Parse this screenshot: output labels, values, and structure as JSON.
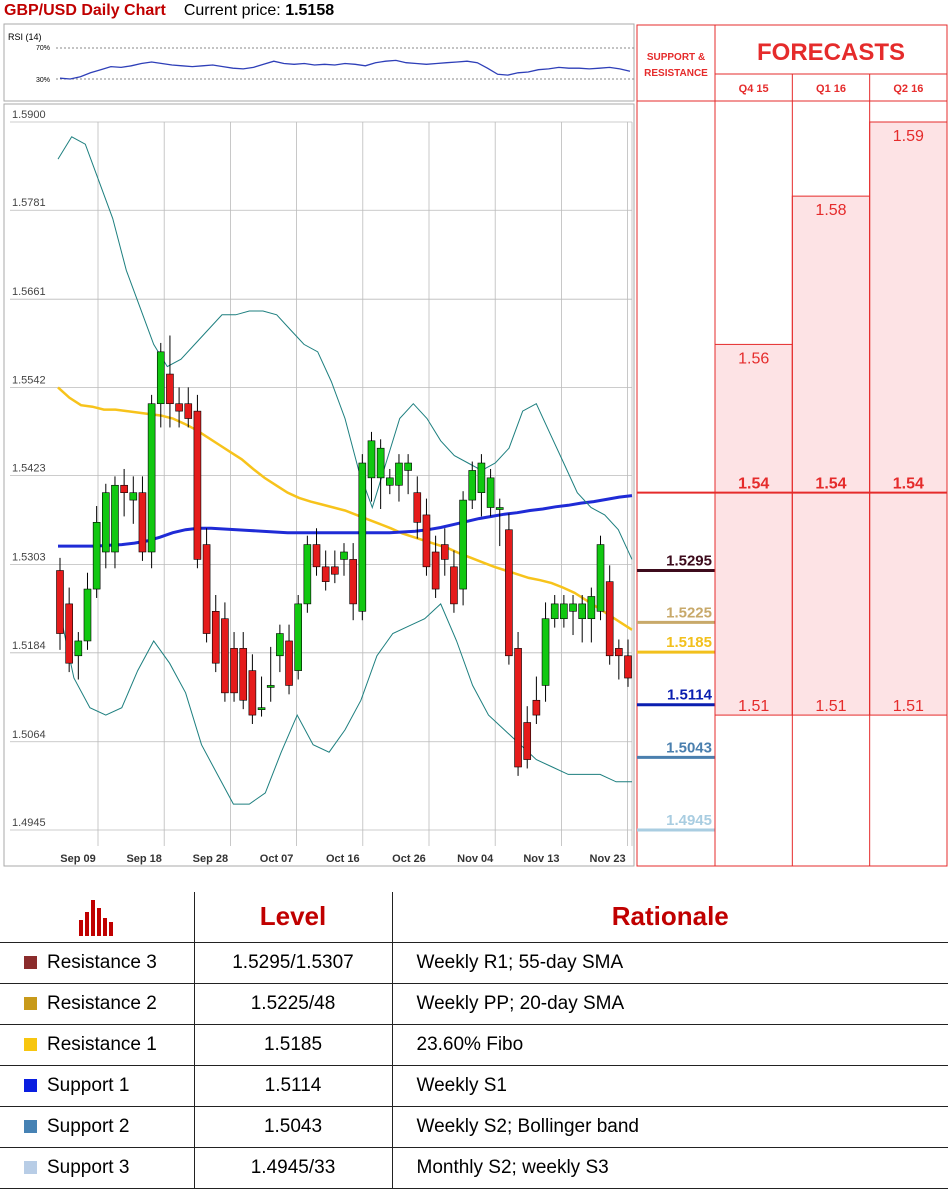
{
  "header": {
    "title": "GBP/USD Daily Chart",
    "price_label": "Current price:",
    "price": "1.5158"
  },
  "rsi": {
    "label": "RSI (14)",
    "upper": "70%",
    "lower": "30%",
    "color": "#2e3fb8",
    "values": [
      31,
      30,
      33,
      38,
      42,
      46,
      45,
      47,
      50,
      52,
      50,
      48,
      47,
      46,
      47,
      48,
      46,
      44,
      43,
      45,
      49,
      53,
      50,
      49,
      50,
      48,
      49,
      48,
      50,
      49,
      47,
      51,
      53,
      54,
      51,
      50,
      49,
      50,
      51,
      52,
      53,
      51,
      44,
      36,
      35,
      38,
      39,
      42,
      43,
      45,
      44,
      44,
      43,
      44,
      45,
      43,
      40
    ]
  },
  "chart_data": {
    "type": "candlestick",
    "ylim": [
      1.4945,
      1.59
    ],
    "y_ticks": [
      "1.5900",
      "1.5781",
      "1.5661",
      "1.5542",
      "1.5423",
      "1.5303",
      "1.5184",
      "1.5064",
      "1.4945"
    ],
    "x_ticks": [
      "Sep 09",
      "Sep 18",
      "Sep 28",
      "Oct 07",
      "Oct 16",
      "Oct 26",
      "Nov 04",
      "Nov 13",
      "Nov 23"
    ],
    "candles": [
      [
        1.5295,
        1.53,
        1.52,
        1.521
      ],
      [
        1.525,
        1.526,
        1.518,
        1.517
      ],
      [
        1.518,
        1.52,
        1.516,
        1.52
      ],
      [
        1.52,
        1.528,
        1.52,
        1.527
      ],
      [
        1.527,
        1.537,
        1.527,
        1.536
      ],
      [
        1.532,
        1.538,
        1.531,
        1.54
      ],
      [
        1.532,
        1.539,
        1.531,
        1.541
      ],
      [
        1.541,
        1.542,
        1.538,
        1.54
      ],
      [
        1.539,
        1.541,
        1.537,
        1.54
      ],
      [
        1.54,
        1.541,
        1.532,
        1.532
      ],
      [
        1.532,
        1.548,
        1.531,
        1.552
      ],
      [
        1.552,
        1.557,
        1.55,
        1.559
      ],
      [
        1.556,
        1.56,
        1.55,
        1.552
      ],
      [
        1.552,
        1.553,
        1.55,
        1.551
      ],
      [
        1.552,
        1.553,
        1.551,
        1.55
      ],
      [
        1.551,
        1.552,
        1.536,
        1.531
      ],
      [
        1.533,
        1.534,
        1.525,
        1.521
      ],
      [
        1.524,
        1.525,
        1.518,
        1.517
      ],
      [
        1.523,
        1.524,
        1.516,
        1.513
      ],
      [
        1.519,
        1.52,
        1.515,
        1.513
      ],
      [
        1.519,
        1.52,
        1.514,
        1.512
      ],
      [
        1.516,
        1.517,
        1.512,
        1.51
      ],
      [
        1.511,
        1.514,
        1.511,
        1.511
      ],
      [
        1.514,
        1.518,
        1.513,
        1.514
      ],
      [
        1.518,
        1.52,
        1.517,
        1.521
      ],
      [
        1.52,
        1.521,
        1.515,
        1.514
      ],
      [
        1.516,
        1.524,
        1.516,
        1.525
      ],
      [
        1.525,
        1.533,
        1.525,
        1.533
      ],
      [
        1.533,
        1.534,
        1.53,
        1.53
      ],
      [
        1.53,
        1.531,
        1.529,
        1.528
      ],
      [
        1.53,
        1.531,
        1.529,
        1.529
      ],
      [
        1.531,
        1.532,
        1.53,
        1.532
      ],
      [
        1.531,
        1.532,
        1.524,
        1.525
      ],
      [
        1.524,
        1.542,
        1.524,
        1.544
      ],
      [
        1.542,
        1.543,
        1.54,
        1.547
      ],
      [
        1.542,
        1.543,
        1.539,
        1.546
      ],
      [
        1.541,
        1.542,
        1.541,
        1.542
      ],
      [
        1.541,
        1.543,
        1.54,
        1.544
      ],
      [
        1.543,
        1.541,
        1.542,
        1.544
      ],
      [
        1.54,
        1.541,
        1.535,
        1.536
      ],
      [
        1.537,
        1.538,
        1.53,
        1.53
      ],
      [
        1.532,
        1.533,
        1.529,
        1.527
      ],
      [
        1.533,
        1.534,
        1.53,
        1.531
      ],
      [
        1.53,
        1.531,
        1.526,
        1.525
      ],
      [
        1.527,
        1.538,
        1.526,
        1.539
      ],
      [
        1.539,
        1.541,
        1.539,
        1.543
      ],
      [
        1.54,
        1.541,
        1.538,
        1.544
      ],
      [
        1.538,
        1.539,
        1.538,
        1.542
      ],
      [
        1.538,
        1.534,
        1.535,
        1.538
      ],
      [
        1.535,
        1.536,
        1.519,
        1.518
      ],
      [
        1.519,
        1.52,
        1.503,
        1.503
      ],
      [
        1.509,
        1.51,
        1.504,
        1.504
      ],
      [
        1.512,
        1.514,
        1.511,
        1.51
      ],
      [
        1.514,
        1.524,
        1.513,
        1.523
      ],
      [
        1.523,
        1.524,
        1.524,
        1.525
      ],
      [
        1.523,
        1.524,
        1.524,
        1.525
      ],
      [
        1.524,
        1.524,
        1.522,
        1.525
      ],
      [
        1.523,
        1.524,
        1.521,
        1.525
      ],
      [
        1.523,
        1.524,
        1.521,
        1.526
      ],
      [
        1.524,
        1.529,
        1.524,
        1.533
      ],
      [
        1.528,
        1.529,
        1.519,
        1.518
      ],
      [
        1.519,
        1.519,
        1.516,
        1.518
      ],
      [
        1.518,
        1.519,
        1.516,
        1.515
      ]
    ],
    "series": [
      {
        "name": "SMA (yellow)",
        "color": "#f7c31b",
        "values": [
          1.5542,
          1.5528,
          1.5518,
          1.5516,
          1.5512,
          1.5512,
          1.551,
          1.5508,
          1.5506,
          1.5504,
          1.55,
          1.5493,
          1.5485,
          1.5475,
          1.5465,
          1.5455,
          1.5445,
          1.5432,
          1.542,
          1.541,
          1.54,
          1.5393,
          1.5388,
          1.5384,
          1.538,
          1.5376,
          1.537,
          1.5364,
          1.5358,
          1.5352,
          1.5345,
          1.534,
          1.5335,
          1.533,
          1.5325,
          1.5318,
          1.5312,
          1.5306,
          1.53,
          1.5295,
          1.529,
          1.5285,
          1.5282,
          1.5278,
          1.5272,
          1.5265,
          1.5255,
          1.5245,
          1.5235,
          1.5225,
          1.5215
        ]
      },
      {
        "name": "SMA (blue)",
        "color": "#1f2bd6",
        "values": [
          1.5328,
          1.5328,
          1.5328,
          1.5328,
          1.5329,
          1.533,
          1.5332,
          1.5335,
          1.534,
          1.5346,
          1.535,
          1.5352,
          1.5352,
          1.5351,
          1.535,
          1.5349,
          1.5348,
          1.5347,
          1.5346,
          1.5346,
          1.5346,
          1.5346,
          1.5346,
          1.5346,
          1.5346,
          1.5346,
          1.5346,
          1.5347,
          1.5348,
          1.535,
          1.5353,
          1.5357,
          1.5361,
          1.5365,
          1.5368,
          1.5371,
          1.5373,
          1.5376,
          1.5378,
          1.5381,
          1.5383,
          1.5386,
          1.5388,
          1.5391,
          1.5394,
          1.5396
        ]
      },
      {
        "name": "Bollinger upper",
        "color": "#1d7f7f",
        "values": [
          1.585,
          1.588,
          1.587,
          1.582,
          1.577,
          1.57,
          1.565,
          1.56,
          1.557,
          1.558,
          1.56,
          1.562,
          1.564,
          1.564,
          1.5645,
          1.5645,
          1.564,
          1.562,
          1.56,
          1.559,
          1.555,
          1.55,
          1.543,
          1.538,
          1.544,
          1.55,
          1.552,
          1.55,
          1.547,
          1.545,
          1.544,
          1.543,
          1.544,
          1.546,
          1.551,
          1.552,
          1.548,
          1.544,
          1.54,
          1.538,
          1.537,
          1.535,
          1.531
        ]
      },
      {
        "name": "Bollinger lower",
        "color": "#1d7f7f",
        "values": [
          1.525,
          1.515,
          1.511,
          1.51,
          1.511,
          1.516,
          1.52,
          1.517,
          1.513,
          1.506,
          1.502,
          1.498,
          1.498,
          1.4995,
          1.505,
          1.51,
          1.506,
          1.505,
          1.508,
          1.512,
          1.518,
          1.521,
          1.522,
          1.523,
          1.525,
          1.52,
          1.514,
          1.51,
          1.508,
          1.506,
          1.504,
          1.503,
          1.502,
          1.502,
          1.502,
          1.501,
          1.501
        ]
      }
    ]
  },
  "support_resistance": {
    "header": "SUPPORT & RESISTANCE",
    "levels": [
      {
        "label": "1.5295",
        "value": 1.5295,
        "color": "#3d0b1c"
      },
      {
        "label": "1.5225",
        "value": 1.5225,
        "color": "#c8a96a"
      },
      {
        "label": "1.5185",
        "value": 1.5185,
        "color": "#f2c01c"
      },
      {
        "label": "1.5114",
        "value": 1.5114,
        "color": "#0a1fb0"
      },
      {
        "label": "1.5043",
        "value": 1.5043,
        "color": "#4a7fae"
      },
      {
        "label": "1.4945",
        "value": 1.4945,
        "color": "#a9cde1"
      }
    ]
  },
  "forecasts": {
    "title": "FORECASTS",
    "columns": [
      {
        "quarter": "Q4 15",
        "high": "1.56",
        "mid": "1.54",
        "low": "1.51",
        "high_value": 1.56
      },
      {
        "quarter": "Q1 16",
        "high": "1.58",
        "mid": "1.54",
        "low": "1.51",
        "high_value": 1.58
      },
      {
        "quarter": "Q2 16",
        "high": "1.59",
        "mid": "1.54",
        "low": "1.51",
        "high_value": 1.59
      }
    ],
    "mid_value": 1.54,
    "low_value": 1.51,
    "accent": "#e52b2b",
    "fill": "#fde3e5"
  },
  "table": {
    "headers": [
      "Level",
      "Rationale"
    ],
    "rows": [
      {
        "name": "Resistance 3",
        "level": "1.5295/1.5307",
        "rationale": "Weekly R1; 55-day SMA",
        "color": "#8b2c2c"
      },
      {
        "name": "Resistance 2",
        "level": "1.5225/48",
        "rationale": "Weekly PP; 20-day SMA",
        "color": "#c89a1a"
      },
      {
        "name": "Resistance 1",
        "level": "1.5185",
        "rationale": "23.60% Fibo",
        "color": "#f7c60f"
      },
      {
        "name": "Support 1",
        "level": "1.5114",
        "rationale": "Weekly S1",
        "color": "#0a1ee0"
      },
      {
        "name": "Support 2",
        "level": "1.5043",
        "rationale": "Weekly S2; Bollinger band",
        "color": "#4682b4"
      },
      {
        "name": "Support 3",
        "level": "1.4945/33",
        "rationale": "Monthly S2; weekly S3",
        "color": "#b8cde6"
      }
    ]
  }
}
